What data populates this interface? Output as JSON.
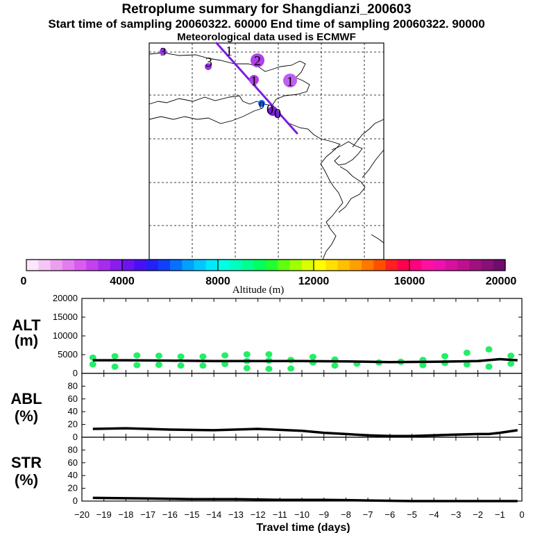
{
  "header": {
    "title": "Retroplume summary for Shangdianzi_200603",
    "sampling_line": "Start time of sampling 20060322. 60000     End time of sampling 20060322. 90000",
    "met_line": "Meteorological data used is ECMWF"
  },
  "colors": {
    "plume_line": "#7a1ee0",
    "cluster_big": "#b040e8",
    "cluster_dark": "#7a1ee0",
    "alt_points": "#22ee66",
    "mean_line": "#000000"
  },
  "map": {
    "cluster_labels": [
      "3",
      "1",
      "2",
      "1",
      "1",
      "3",
      "0"
    ]
  },
  "colorbar": {
    "tick_labels": [
      "0",
      "4000",
      "8000",
      "12000",
      "16000",
      "20000"
    ],
    "title": "Altitude (m)",
    "colors": [
      "#fbe6fb",
      "#f5c6f5",
      "#ec9ff0",
      "#e47cf0",
      "#d85cf0",
      "#c440f0",
      "#a82cf0",
      "#8a1cf0",
      "#6c14f0",
      "#4a10f4",
      "#2420f8",
      "#1040ff",
      "#0870ff",
      "#00a0ff",
      "#00c8ff",
      "#00eaff",
      "#00ffe8",
      "#00ffc0",
      "#00ff90",
      "#00ff60",
      "#20ff30",
      "#60ff10",
      "#a0ff00",
      "#d8ff00",
      "#ffff00",
      "#ffe000",
      "#ffc000",
      "#ffa000",
      "#ff7800",
      "#ff5000",
      "#ff2020",
      "#ff0050",
      "#ff0080",
      "#ff10a0",
      "#f010b0",
      "#d810a0",
      "#c01090",
      "#a01080",
      "#881078",
      "#700c6c"
    ]
  },
  "chart_data": [
    {
      "type": "scatter",
      "panel": "ALT",
      "ylabel": "ALT\n(m)",
      "ylabel_line1": "ALT",
      "ylabel_line2": "(m)",
      "xlim": [
        -20,
        0
      ],
      "ylim": [
        0,
        20000
      ],
      "yticks": [
        "20000",
        "15000",
        "10000",
        "5000",
        "0"
      ],
      "x": [
        -19.5,
        -19.5,
        -18.5,
        -18.5,
        -17.5,
        -17.5,
        -16.5,
        -16.5,
        -15.5,
        -15.5,
        -14.5,
        -14.5,
        -13.5,
        -13.5,
        -12.5,
        -12.5,
        -12.5,
        -11.5,
        -11.5,
        -11.5,
        -10.5,
        -10.5,
        -9.5,
        -9.5,
        -8.5,
        -8.5,
        -7.5,
        -6.5,
        -5.5,
        -4.5,
        -4.5,
        -3.5,
        -3.5,
        -2.5,
        -2.5,
        -1.5,
        -1.5,
        -0.5,
        -0.5
      ],
      "y": [
        2400,
        4200,
        1800,
        4600,
        2200,
        4800,
        2300,
        4700,
        2100,
        4500,
        2100,
        4500,
        2500,
        4800,
        1400,
        3300,
        5100,
        1200,
        3400,
        5100,
        1300,
        3600,
        2900,
        4400,
        2100,
        3700,
        2600,
        2900,
        3100,
        2200,
        3600,
        2800,
        4600,
        2400,
        5500,
        1800,
        6400,
        2600,
        4700
      ],
      "mean": {
        "x": [
          -19.5,
          -18,
          -16,
          -14,
          -12,
          -10,
          -8,
          -6,
          -4,
          -2,
          -1,
          -0.2
        ],
        "y": [
          3500,
          3500,
          3400,
          3300,
          3300,
          3300,
          3200,
          3000,
          3100,
          3300,
          3800,
          3500
        ]
      }
    },
    {
      "type": "line",
      "panel": "ABL",
      "ylabel": "ABL\n(%)",
      "ylabel_line1": "ABL",
      "ylabel_line2": "(%)",
      "xlim": [
        -20,
        0
      ],
      "ylim": [
        0,
        100
      ],
      "yticks": [
        "80",
        "60",
        "40",
        "20",
        "0"
      ],
      "x": [
        -19.5,
        -18,
        -17,
        -16,
        -14,
        -12,
        -10,
        -9,
        -8,
        -7,
        -6,
        -5,
        -4,
        -3,
        -2,
        -1.5,
        -1,
        -0.2
      ],
      "y": [
        13,
        14,
        13,
        12,
        11,
        13,
        10,
        7,
        5,
        3,
        2,
        2,
        3,
        4,
        5,
        5,
        7,
        11
      ]
    },
    {
      "type": "line",
      "panel": "STR",
      "ylabel": "STR\n(%)",
      "ylabel_line1": "STR",
      "ylabel_line2": "(%)",
      "xlim": [
        -20,
        0
      ],
      "ylim": [
        0,
        100
      ],
      "yticks": [
        "80",
        "60",
        "40",
        "20",
        "0"
      ],
      "x": [
        -19.5,
        -17,
        -15,
        -13,
        -11,
        -9,
        -7,
        -5,
        -3,
        -1,
        -0.2
      ],
      "y": [
        5,
        4,
        3,
        3,
        2,
        2,
        1,
        0,
        0,
        0,
        0
      ]
    }
  ],
  "xaxis": {
    "tick_labels": [
      "-20",
      "-19",
      "-18",
      "-17",
      "-16",
      "-15",
      "-14",
      "-13",
      "-12",
      "-11",
      "-10",
      "-9",
      "-8",
      "-7",
      "-6",
      "-5",
      "-4",
      "-3",
      "-2",
      "-1",
      "0"
    ],
    "title": "Travel time (days)"
  }
}
